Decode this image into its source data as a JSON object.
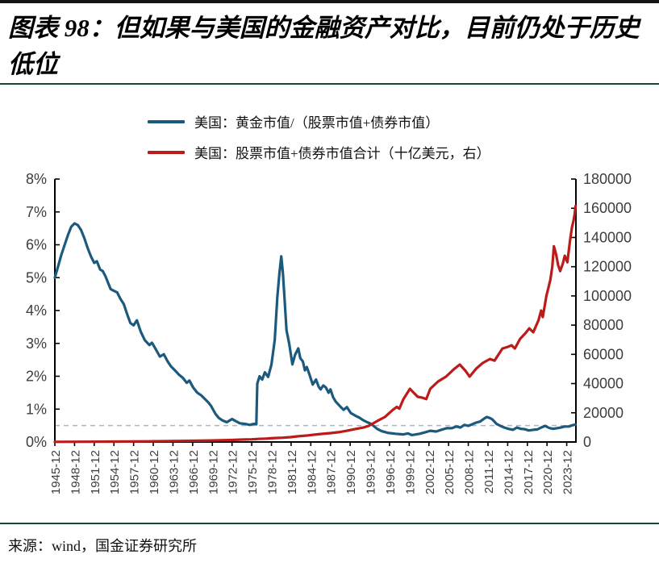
{
  "page": {
    "title": "图表 98：但如果与美国的金融资产对比，目前仍处于历史低位",
    "source": "来源：wind，国金证券研究所"
  },
  "legend": [
    {
      "label": "美国：黄金市值/（股票市值+债券市值）",
      "color": "#1c5a7d"
    },
    {
      "label": "美国：股票市值+债券市值合计（十亿美元，右）",
      "color": "#bd1a1a"
    }
  ],
  "colors": {
    "blue_series": "#1c5a7d",
    "red_series": "#bd1a1a",
    "reference_dash": "#a3b8cc",
    "axis": "#000000",
    "tick_text": "#3d3d3d",
    "rule_green": "#16453b"
  },
  "chart_data": {
    "type": "line",
    "title": "图表 98：但如果与美国的金融资产对比，目前仍处于历史低位",
    "x_axis": {
      "range": [
        1946,
        2025.4
      ],
      "tick_positions": [
        1946,
        1949,
        1952,
        1955,
        1958,
        1961,
        1964,
        1967,
        1970,
        1973,
        1976,
        1979,
        1982,
        1985,
        1988,
        1991,
        1994,
        1997,
        2000,
        2003,
        2006,
        2009,
        2012,
        2015,
        2018,
        2021,
        2024
      ],
      "tick_labels": [
        "1945-12",
        "1948-12",
        "1951-12",
        "1954-12",
        "1957-12",
        "1960-12",
        "1963-12",
        "1966-12",
        "1969-12",
        "1972-12",
        "1975-12",
        "1978-12",
        "1981-12",
        "1984-12",
        "1987-12",
        "1990-12",
        "1993-12",
        "1996-12",
        "1999-12",
        "2002-12",
        "2005-12",
        "2008-12",
        "2011-12",
        "2014-12",
        "2017-12",
        "2020-12",
        "2023-12"
      ]
    },
    "y_left": {
      "range": [
        0,
        8
      ],
      "tick_values": [
        0,
        1,
        2,
        3,
        4,
        5,
        6,
        7,
        8
      ],
      "tick_labels": [
        "0%",
        "1%",
        "2%",
        "3%",
        "4%",
        "5%",
        "6%",
        "7%",
        "8%"
      ]
    },
    "y_right": {
      "range": [
        0,
        180000
      ],
      "tick_values": [
        0,
        20000,
        40000,
        60000,
        80000,
        100000,
        120000,
        140000,
        160000,
        180000
      ],
      "tick_labels": [
        "0",
        "20000",
        "40000",
        "60000",
        "80000",
        "100000",
        "120000",
        "140000",
        "160000",
        "180000"
      ]
    },
    "reference_line": {
      "axis": "left",
      "value": 0.5,
      "style": "dashed"
    },
    "grid": false,
    "legend_position": "top-left",
    "series": [
      {
        "name": "美国：黄金市值/（股票市值+债券市值）",
        "axis": "left",
        "unit": "%",
        "color": "#1c5a7d",
        "points": [
          [
            1946,
            5.0
          ],
          [
            1946.5,
            5.35
          ],
          [
            1947,
            5.7
          ],
          [
            1947.5,
            6.0
          ],
          [
            1948,
            6.3
          ],
          [
            1948.5,
            6.55
          ],
          [
            1949,
            6.65
          ],
          [
            1949.5,
            6.6
          ],
          [
            1950,
            6.45
          ],
          [
            1950.5,
            6.2
          ],
          [
            1951,
            5.9
          ],
          [
            1951.5,
            5.65
          ],
          [
            1952,
            5.45
          ],
          [
            1952.4,
            5.5
          ],
          [
            1952.9,
            5.25
          ],
          [
            1953.3,
            5.2
          ],
          [
            1953.7,
            5.05
          ],
          [
            1954.1,
            4.85
          ],
          [
            1954.5,
            4.65
          ],
          [
            1955,
            4.6
          ],
          [
            1955.5,
            4.55
          ],
          [
            1956,
            4.35
          ],
          [
            1956.5,
            4.2
          ],
          [
            1957,
            3.9
          ],
          [
            1957.5,
            3.62
          ],
          [
            1958,
            3.55
          ],
          [
            1958.5,
            3.7
          ],
          [
            1959.1,
            3.35
          ],
          [
            1959.7,
            3.1
          ],
          [
            1960.4,
            2.95
          ],
          [
            1960.8,
            3.02
          ],
          [
            1961.3,
            2.85
          ],
          [
            1962,
            2.6
          ],
          [
            1962.6,
            2.67
          ],
          [
            1963.2,
            2.45
          ],
          [
            1963.7,
            2.3
          ],
          [
            1964.3,
            2.18
          ],
          [
            1964.9,
            2.05
          ],
          [
            1965.5,
            1.95
          ],
          [
            1966.1,
            1.8
          ],
          [
            1966.5,
            1.87
          ],
          [
            1967.1,
            1.65
          ],
          [
            1967.7,
            1.5
          ],
          [
            1968.3,
            1.42
          ],
          [
            1968.9,
            1.3
          ],
          [
            1969.4,
            1.2
          ],
          [
            1969.8,
            1.1
          ],
          [
            1970.5,
            0.85
          ],
          [
            1971,
            0.73
          ],
          [
            1971.5,
            0.66
          ],
          [
            1972.2,
            0.6
          ],
          [
            1973,
            0.7
          ],
          [
            1973.6,
            0.63
          ],
          [
            1974.2,
            0.57
          ],
          [
            1975,
            0.55
          ],
          [
            1975.7,
            0.52
          ],
          [
            1976.3,
            0.55
          ],
          [
            1976.7,
            0.54
          ],
          [
            1976.78,
            1.2
          ],
          [
            1976.85,
            1.78
          ],
          [
            1977.2,
            2.0
          ],
          [
            1977.6,
            1.9
          ],
          [
            1978,
            2.12
          ],
          [
            1978.5,
            1.98
          ],
          [
            1979,
            2.35
          ],
          [
            1979.5,
            3.1
          ],
          [
            1979.9,
            4.4
          ],
          [
            1980.2,
            5.1
          ],
          [
            1980.5,
            5.65
          ],
          [
            1980.75,
            5.15
          ],
          [
            1981,
            4.35
          ],
          [
            1981.3,
            3.4
          ],
          [
            1981.7,
            3.0
          ],
          [
            1982.2,
            2.36
          ],
          [
            1982.6,
            2.65
          ],
          [
            1983.1,
            2.85
          ],
          [
            1983.4,
            2.55
          ],
          [
            1983.8,
            2.45
          ],
          [
            1984.1,
            2.18
          ],
          [
            1984.4,
            2.28
          ],
          [
            1984.8,
            2.05
          ],
          [
            1985.3,
            1.75
          ],
          [
            1985.8,
            1.9
          ],
          [
            1986.2,
            1.68
          ],
          [
            1986.5,
            1.6
          ],
          [
            1986.9,
            1.72
          ],
          [
            1987.3,
            1.66
          ],
          [
            1987.7,
            1.5
          ],
          [
            1988,
            1.6
          ],
          [
            1988.4,
            1.36
          ],
          [
            1988.8,
            1.23
          ],
          [
            1989.4,
            1.1
          ],
          [
            1990,
            0.98
          ],
          [
            1990.5,
            1.06
          ],
          [
            1991.1,
            0.88
          ],
          [
            1991.8,
            0.8
          ],
          [
            1992.4,
            0.74
          ],
          [
            1993,
            0.66
          ],
          [
            1993.6,
            0.6
          ],
          [
            1994.2,
            0.55
          ],
          [
            1995.1,
            0.4
          ],
          [
            1995.8,
            0.33
          ],
          [
            1996.7,
            0.28
          ],
          [
            1997.9,
            0.25
          ],
          [
            1999.1,
            0.23
          ],
          [
            1999.8,
            0.26
          ],
          [
            2000.4,
            0.21
          ],
          [
            2001.6,
            0.25
          ],
          [
            2002.5,
            0.3
          ],
          [
            2003.2,
            0.34
          ],
          [
            2004.1,
            0.32
          ],
          [
            2004.9,
            0.37
          ],
          [
            2005.7,
            0.42
          ],
          [
            2006.5,
            0.42
          ],
          [
            2007.2,
            0.47
          ],
          [
            2007.8,
            0.44
          ],
          [
            2008.4,
            0.52
          ],
          [
            2009,
            0.49
          ],
          [
            2009.6,
            0.54
          ],
          [
            2010.2,
            0.59
          ],
          [
            2010.8,
            0.62
          ],
          [
            2011.4,
            0.71
          ],
          [
            2011.8,
            0.76
          ],
          [
            2012.3,
            0.73
          ],
          [
            2012.7,
            0.68
          ],
          [
            2013.3,
            0.55
          ],
          [
            2013.9,
            0.49
          ],
          [
            2014.5,
            0.44
          ],
          [
            2015.1,
            0.4
          ],
          [
            2015.8,
            0.37
          ],
          [
            2016.4,
            0.44
          ],
          [
            2017,
            0.4
          ],
          [
            2017.6,
            0.39
          ],
          [
            2018.2,
            0.35
          ],
          [
            2018.9,
            0.37
          ],
          [
            2019.5,
            0.38
          ],
          [
            2020.1,
            0.44
          ],
          [
            2020.7,
            0.49
          ],
          [
            2021.3,
            0.43
          ],
          [
            2021.9,
            0.4
          ],
          [
            2022.5,
            0.42
          ],
          [
            2023.1,
            0.44
          ],
          [
            2023.7,
            0.47
          ],
          [
            2024.3,
            0.47
          ],
          [
            2024.9,
            0.51
          ],
          [
            2025.3,
            0.53
          ]
        ]
      },
      {
        "name": "美国：股票市值+债券市值合计（十亿美元，右）",
        "axis": "right",
        "unit": "十亿美元",
        "color": "#bd1a1a",
        "points": [
          [
            1946,
            130
          ],
          [
            1950,
            180
          ],
          [
            1955,
            300
          ],
          [
            1960,
            460
          ],
          [
            1965,
            700
          ],
          [
            1970,
            1050
          ],
          [
            1973,
            1400
          ],
          [
            1974.5,
            1650
          ],
          [
            1976,
            1800
          ],
          [
            1977,
            2100
          ],
          [
            1978.2,
            2300
          ],
          [
            1979.4,
            2700
          ],
          [
            1980.7,
            2900
          ],
          [
            1981.9,
            3300
          ],
          [
            1983.1,
            3900
          ],
          [
            1984.4,
            4400
          ],
          [
            1985.6,
            5000
          ],
          [
            1986.8,
            5600
          ],
          [
            1988,
            6100
          ],
          [
            1989.2,
            6700
          ],
          [
            1990.5,
            7700
          ],
          [
            1991.7,
            8800
          ],
          [
            1993,
            9900
          ],
          [
            1993.8,
            11000
          ],
          [
            1995.1,
            14300
          ],
          [
            1996.3,
            17100
          ],
          [
            1997.5,
            22000
          ],
          [
            1998.1,
            24000
          ],
          [
            1998.5,
            22800
          ],
          [
            1999.1,
            29200
          ],
          [
            2000.1,
            36400
          ],
          [
            2000.7,
            33700
          ],
          [
            2001.3,
            30900
          ],
          [
            2002,
            30300
          ],
          [
            2002.6,
            29400
          ],
          [
            2003.2,
            36400
          ],
          [
            2004.4,
            41400
          ],
          [
            2005.6,
            44700
          ],
          [
            2006.9,
            50200
          ],
          [
            2007.7,
            53000
          ],
          [
            2008.6,
            48600
          ],
          [
            2009.2,
            44700
          ],
          [
            2010.2,
            50200
          ],
          [
            2011.2,
            54100
          ],
          [
            2012.3,
            56800
          ],
          [
            2013,
            55700
          ],
          [
            2014.2,
            64000
          ],
          [
            2015,
            65100
          ],
          [
            2015.6,
            66200
          ],
          [
            2016.1,
            64000
          ],
          [
            2016.9,
            70600
          ],
          [
            2017.7,
            74500
          ],
          [
            2018.3,
            77800
          ],
          [
            2018.9,
            75100
          ],
          [
            2019.7,
            83300
          ],
          [
            2020.1,
            90000
          ],
          [
            2020.35,
            85500
          ],
          [
            2020.9,
            100000
          ],
          [
            2021.5,
            111000
          ],
          [
            2021.8,
            120000
          ],
          [
            2022.05,
            134000
          ],
          [
            2022.4,
            128000
          ],
          [
            2022.7,
            121000
          ],
          [
            2023,
            117000
          ],
          [
            2023.4,
            122000
          ],
          [
            2023.7,
            127500
          ],
          [
            2024.1,
            123000
          ],
          [
            2024.5,
            138000
          ],
          [
            2024.8,
            147000
          ],
          [
            2025.05,
            152000
          ],
          [
            2025.2,
            156000
          ],
          [
            2025.35,
            161500
          ]
        ]
      }
    ]
  }
}
